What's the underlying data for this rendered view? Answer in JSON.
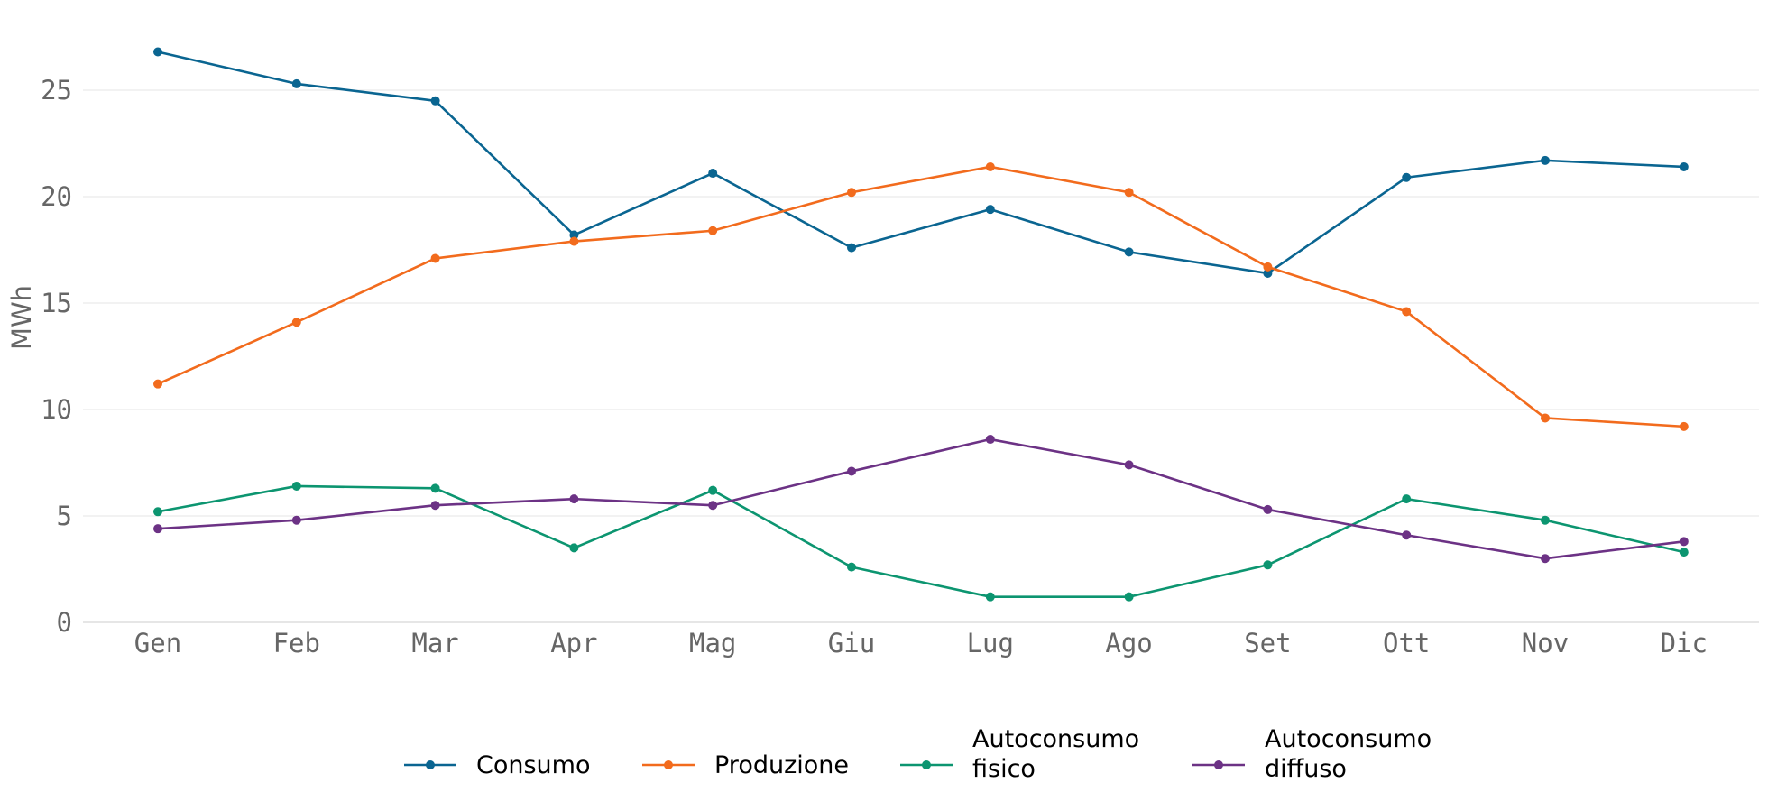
{
  "chart_data": {
    "type": "line",
    "title": "",
    "xlabel": "",
    "ylabel": "MWh",
    "categories": [
      "Gen",
      "Feb",
      "Mar",
      "Apr",
      "Mag",
      "Giu",
      "Lug",
      "Ago",
      "Set",
      "Ott",
      "Nov",
      "Dic"
    ],
    "ylim": [
      0,
      28
    ],
    "yticks": [
      0,
      5,
      10,
      15,
      20,
      25
    ],
    "grid": "horizontal",
    "legend_position": "bottom-center",
    "series": [
      {
        "name": "Consumo",
        "color": "#0a6591",
        "values": [
          26.8,
          25.3,
          24.5,
          18.2,
          21.1,
          17.6,
          19.4,
          17.4,
          16.4,
          20.9,
          21.7,
          21.4
        ]
      },
      {
        "name": "Produzione",
        "color": "#f26b1d",
        "values": [
          11.2,
          14.1,
          17.1,
          17.9,
          18.4,
          20.2,
          21.4,
          20.2,
          16.7,
          14.6,
          9.6,
          9.2
        ]
      },
      {
        "name": "Autoconsumo fisico",
        "color": "#0c9570",
        "values": [
          5.2,
          6.4,
          6.3,
          3.5,
          6.2,
          2.6,
          1.2,
          1.2,
          2.7,
          5.8,
          4.8,
          3.3
        ]
      },
      {
        "name": "Autoconsumo diffuso",
        "color": "#6c3285",
        "values": [
          4.4,
          4.8,
          5.5,
          5.8,
          5.5,
          7.1,
          8.6,
          7.4,
          5.3,
          4.1,
          3.0,
          3.8
        ]
      }
    ]
  }
}
